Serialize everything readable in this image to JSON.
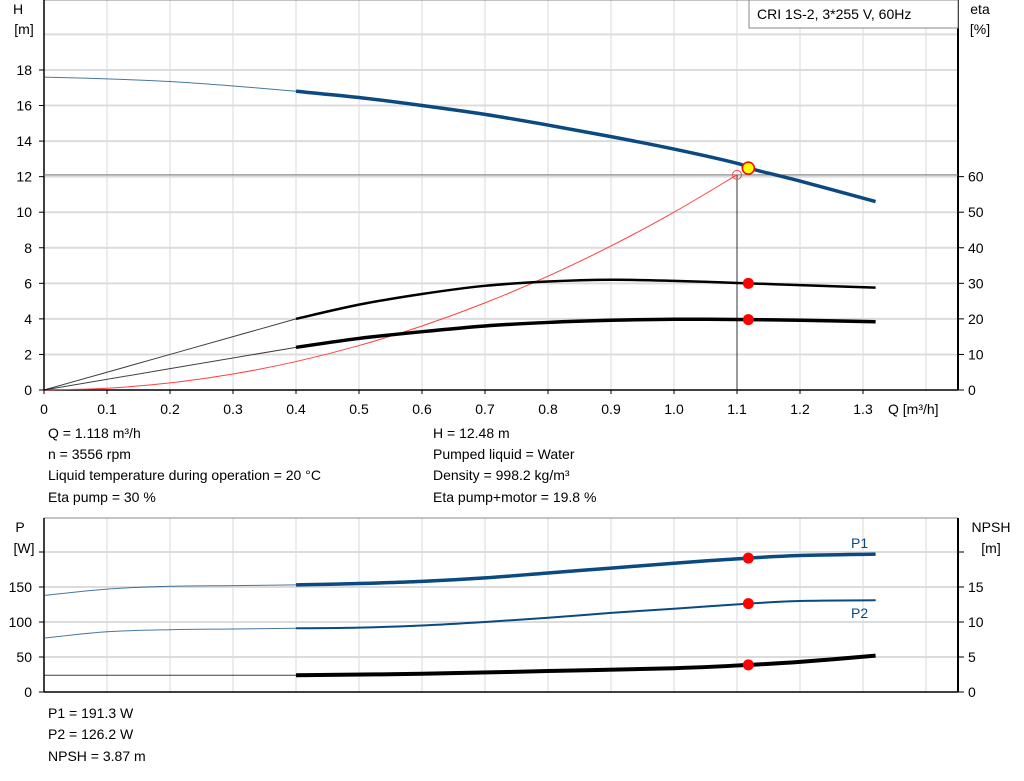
{
  "chart_data": [
    {
      "type": "line",
      "title": "CRI 1S-2, 3*255 V, 60Hz",
      "xlabel": "Q [m³/h]",
      "ylabel_left": "H",
      "ylabel_left_unit": "[m]",
      "ylabel_right": "eta",
      "ylabel_right_unit": "[%]",
      "xlim": [
        0,
        1.45
      ],
      "ylim_left": [
        0,
        21.9
      ],
      "ylim_right": [
        0,
        109.5
      ],
      "x_ticks": [
        "0",
        "0.1",
        "0.2",
        "0.3",
        "0.4",
        "0.5",
        "0.6",
        "0.7",
        "0.8",
        "0.9",
        "1.0",
        "1.1",
        "1.2",
        "1.3"
      ],
      "y_left_ticks": [
        "0",
        "2",
        "4",
        "6",
        "8",
        "10",
        "12",
        "14",
        "16",
        "18"
      ],
      "y_right_ticks": [
        "0",
        "10",
        "20",
        "30",
        "40",
        "50",
        "60"
      ],
      "grid": true,
      "series": [
        {
          "id": "H",
          "axis": "left",
          "color": "#0a4a80",
          "x": [
            0,
            0.1,
            0.2,
            0.3,
            0.4,
            0.5,
            0.6,
            0.7,
            0.8,
            0.9,
            1.0,
            1.1,
            1.118,
            1.2,
            1.32
          ],
          "y": [
            17.6,
            17.5,
            17.35,
            17.1,
            16.8,
            16.45,
            16.0,
            15.5,
            14.9,
            14.25,
            13.55,
            12.75,
            12.48,
            11.75,
            10.6
          ]
        },
        {
          "id": "eta_pump",
          "axis": "right",
          "color": "#000000",
          "x": [
            0,
            0.4,
            0.5,
            0.6,
            0.7,
            0.8,
            0.9,
            1.0,
            1.118,
            1.2,
            1.32
          ],
          "y": [
            0,
            20,
            24,
            27,
            29.3,
            30.5,
            31,
            30.7,
            30,
            29.5,
            28.8
          ]
        },
        {
          "id": "eta_pump_motor",
          "axis": "right",
          "color": "#000000",
          "x": [
            0,
            0.4,
            0.5,
            0.6,
            0.7,
            0.8,
            0.9,
            1.0,
            1.118,
            1.2,
            1.32
          ],
          "y": [
            0,
            12,
            14.5,
            16.4,
            18,
            19,
            19.6,
            19.9,
            19.8,
            19.6,
            19.2
          ]
        },
        {
          "id": "system",
          "axis": "left",
          "color": "#ff4040",
          "x": [
            0,
            0.1,
            0.2,
            0.3,
            0.4,
            0.5,
            0.6,
            0.7,
            0.8,
            0.9,
            1.0,
            1.1
          ],
          "y": [
            0,
            0.1,
            0.4,
            0.9,
            1.6,
            2.5,
            3.6,
            4.9,
            6.4,
            8.1,
            10.0,
            12.1
          ]
        }
      ],
      "duty_point": {
        "Q": 1.118,
        "H": 12.48,
        "eta_pump": 30,
        "eta_pump_motor": 19.8
      },
      "required_point": {
        "Q": 1.1,
        "H": 12.1
      }
    },
    {
      "type": "line",
      "xlim": [
        0,
        1.45
      ],
      "ylabel_left": "P",
      "ylabel_left_unit": "[W]",
      "ylabel_right": "NPSH",
      "ylabel_right_unit": "[m]",
      "ylim_left": [
        0,
        248
      ],
      "ylim_right": [
        0,
        24.8
      ],
      "y_left_ticks": [
        "0",
        "50",
        "100",
        "150"
      ],
      "y_right_ticks": [
        "0",
        "5",
        "10",
        "15"
      ],
      "grid": true,
      "series": [
        {
          "name": "P1",
          "axis": "left",
          "color": "#0a4a80",
          "x": [
            0,
            0.1,
            0.2,
            0.3,
            0.4,
            0.5,
            0.6,
            0.7,
            0.8,
            0.9,
            1.0,
            1.118,
            1.2,
            1.32
          ],
          "y": [
            138,
            147,
            151,
            152,
            153,
            155,
            158,
            163,
            170,
            177,
            184,
            191.3,
            195,
            197
          ]
        },
        {
          "name": "P2",
          "axis": "left",
          "color": "#0a4a80",
          "x": [
            0,
            0.1,
            0.2,
            0.3,
            0.4,
            0.5,
            0.6,
            0.7,
            0.8,
            0.9,
            1.0,
            1.118,
            1.2,
            1.32
          ],
          "y": [
            77,
            86,
            89,
            90,
            91,
            92,
            95,
            100,
            106,
            113,
            119,
            126.2,
            130,
            131
          ]
        },
        {
          "id": "NPSH",
          "axis": "right",
          "color": "#000000",
          "x": [
            0,
            0.4,
            0.6,
            0.8,
            1.0,
            1.118,
            1.2,
            1.32
          ],
          "y": [
            2.4,
            2.4,
            2.6,
            3.0,
            3.4,
            3.87,
            4.3,
            5.2
          ]
        }
      ]
    }
  ],
  "info_top_left": [
    "Q = 1.118 m³/h",
    "n = 3556 rpm",
    "Liquid temperature during operation = 20 °C",
    "Eta pump = 30 %"
  ],
  "info_top_right": [
    "H = 12.48 m",
    "Pumped liquid = Water",
    "Density = 998.2 kg/m³",
    "Eta pump+motor = 19.8 %"
  ],
  "info_bottom": [
    "P1 = 191.3 W",
    "P2 = 126.2 W",
    "NPSH = 3.87 m"
  ]
}
